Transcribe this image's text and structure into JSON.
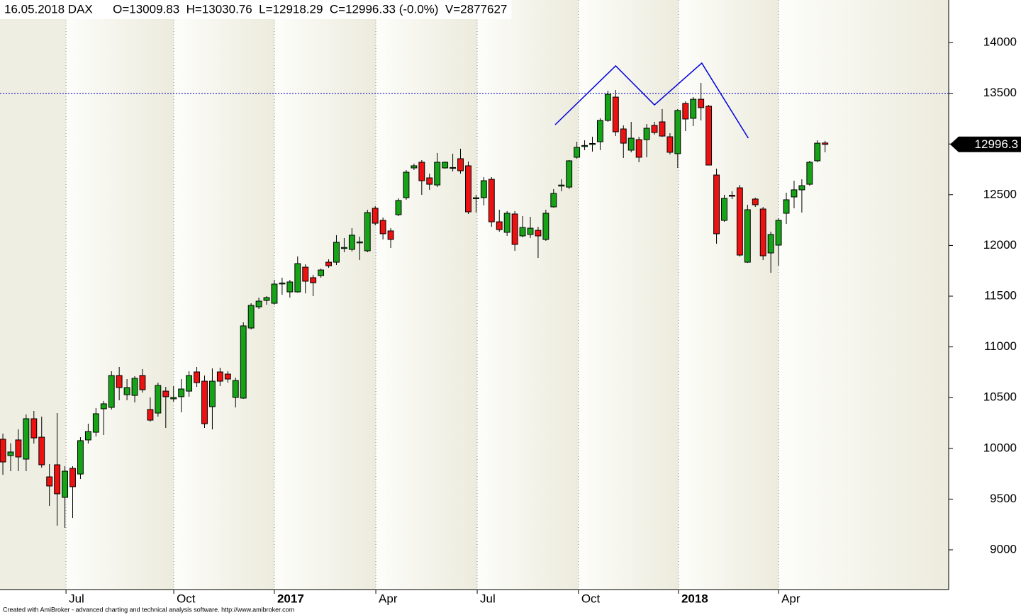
{
  "chart_data": {
    "type": "candlestick",
    "title": "16.05.2018 DAX      O=13009.83  H=13030.76  L=12918.29  C=12996.33 (-0.0%)  V=2877627",
    "open": [
      10090,
      9929,
      10083,
      9894,
      10292,
      10110,
      9719,
      9838,
      9517,
      9803,
      9747,
      10083,
      10159,
      10390,
      10404,
      10718,
      10529,
      10522,
      10718,
      10383,
      10348,
      10564,
      10488,
      10509,
      10564,
      10753,
      10662,
      10411,
      10753,
      10732,
      10502,
      10495,
      11186,
      11395,
      11458,
      11430,
      11620,
      11542,
      11542,
      11786,
      11682,
      11703,
      11835,
      11835,
      11970,
      11961,
      12025,
      11947,
      12366,
      12247,
      12143,
      12303,
      12471,
      12764,
      12820,
      12666,
      12596,
      12764,
      12760,
      12855,
      12785,
      12460,
      12471,
      12652,
      12233,
      12129,
      12310,
      12094,
      12108,
      12149,
      12059,
      12380,
      12585,
      12575,
      12869,
      12975,
      12995,
      13022,
      13232,
      13462,
      13148,
      12939,
      13043,
      13043,
      13183,
      13218,
      13071,
      12904,
      13400,
      13253,
      13441,
      13372,
      12694,
      12247,
      12495,
      12568,
      11835,
      12457,
      12359,
      11926,
      12003,
      12317,
      12478,
      12548,
      12603,
      12834,
      13009.83
    ],
    "high": [
      10145,
      10050,
      10187,
      10334,
      10369,
      10313,
      9845,
      10348,
      9824,
      9824,
      10110,
      10243,
      10397,
      10467,
      10760,
      10802,
      10683,
      10711,
      10781,
      10502,
      10648,
      10606,
      10613,
      10683,
      10760,
      10802,
      10718,
      10788,
      10795,
      10760,
      10697,
      11242,
      11430,
      11486,
      11500,
      11661,
      11682,
      11661,
      11891,
      11814,
      11710,
      11772,
      11863,
      12101,
      12073,
      12170,
      12087,
      12352,
      12387,
      12275,
      12170,
      12464,
      12743,
      12806,
      12841,
      12708,
      12911,
      12827,
      12904,
      12953,
      12827,
      12499,
      12673,
      12673,
      12352,
      12338,
      12338,
      12289,
      12282,
      12184,
      12352,
      12555,
      12652,
      12841,
      13022,
      13036,
      13071,
      13253,
      13525,
      13532,
      13183,
      13218,
      13071,
      13197,
      13218,
      13344,
      13106,
      13344,
      13420,
      13462,
      13602,
      13385,
      12757,
      12499,
      12534,
      12596,
      12401,
      12471,
      12380,
      12136,
      12268,
      12520,
      12638,
      12652,
      12834,
      13036,
      13030.76
    ],
    "low": [
      9740,
      9775,
      9775,
      9775,
      10048,
      9810,
      9433,
      9238,
      9217,
      9314,
      9698,
      10048,
      10117,
      10131,
      10383,
      10474,
      10474,
      10453,
      10550,
      10264,
      10313,
      10201,
      10460,
      10355,
      10509,
      10606,
      10201,
      10187,
      10613,
      10648,
      10404,
      10488,
      11172,
      11374,
      11416,
      11416,
      11514,
      11486,
      11535,
      11528,
      11500,
      11682,
      11779,
      11807,
      11933,
      11940,
      11856,
      11933,
      12198,
      12059,
      11975,
      12289,
      12450,
      12743,
      12499,
      12548,
      12575,
      12757,
      12729,
      12708,
      12310,
      12324,
      12394,
      12184,
      12136,
      12094,
      11947,
      12080,
      12073,
      11877,
      12045,
      12373,
      12534,
      12555,
      12855,
      12939,
      12925,
      12939,
      13218,
      13078,
      12862,
      12918,
      12820,
      12869,
      13092,
      13071,
      12897,
      12764,
      13127,
      13176,
      13232,
      12790,
      12017,
      12233,
      12457,
      11891,
      11828,
      12380,
      11856,
      11731,
      11800,
      12212,
      12366,
      12324,
      12589,
      12820,
      12918.29
    ],
    "close": [
      9866,
      9964,
      9915,
      10292,
      10103,
      9838,
      9629,
      9552,
      9775,
      9622,
      10076,
      10166,
      10341,
      10439,
      10718,
      10599,
      10599,
      10690,
      10578,
      10278,
      10620,
      10509,
      10502,
      10585,
      10718,
      10648,
      10243,
      10662,
      10662,
      10683,
      10669,
      11207,
      11409,
      11451,
      11486,
      11619,
      11630,
      11640,
      11821,
      11647,
      11633,
      11758,
      11800,
      12031,
      11980,
      12101,
      12035,
      12324,
      12219,
      12115,
      12059,
      12443,
      12722,
      12785,
      12638,
      12603,
      12820,
      12820,
      12768,
      12736,
      12331,
      12470,
      12638,
      12233,
      12156,
      12317,
      12010,
      12177,
      12170,
      12094,
      12317,
      12513,
      12595,
      12834,
      12967,
      12985,
      13005,
      13232,
      13490,
      13120,
      13008,
      13057,
      12869,
      13155,
      13113,
      13078,
      12918,
      13330,
      13246,
      13441,
      13358,
      12792,
      12115,
      12464,
      12485,
      11905,
      12352,
      12401,
      11898,
      12108,
      12247,
      12450,
      12548,
      12589,
      12820,
      13008,
      12996.33
    ],
    "up_color": "#17a317",
    "down_color": "#ee1111",
    "ylim": [
      8609,
      14419
    ],
    "yticks": [
      9000,
      9500,
      10000,
      10500,
      11000,
      11500,
      12000,
      12500,
      13000,
      13500,
      14000
    ],
    "xlim": [
      -0.37,
      121.93
    ],
    "xticks": [
      {
        "value": 8.14,
        "label": "Jul"
      },
      {
        "value": 22.03,
        "label": "Oct"
      },
      {
        "value": 35.0,
        "label": "2017"
      },
      {
        "value": 48.08,
        "label": "Apr"
      },
      {
        "value": 61.15,
        "label": "Jul"
      },
      {
        "value": 74.2,
        "label": "Oct"
      },
      {
        "value": 87.1,
        "label": "2018"
      },
      {
        "value": 100.0,
        "label": "Apr"
      }
    ],
    "grid": true,
    "reference_line": 13500,
    "reference_color": "#0000cc",
    "annotation_line": {
      "x": [
        71.2,
        79.0,
        84.0,
        90.1,
        96.1
      ],
      "y": [
        13190,
        13770,
        13385,
        13797,
        13057
      ],
      "color": "#0000dd"
    },
    "last_value": 12996.3
  },
  "footer": "Created with AmiBroker - advanced charting and technical analysis software. http://www.amibroker.com"
}
